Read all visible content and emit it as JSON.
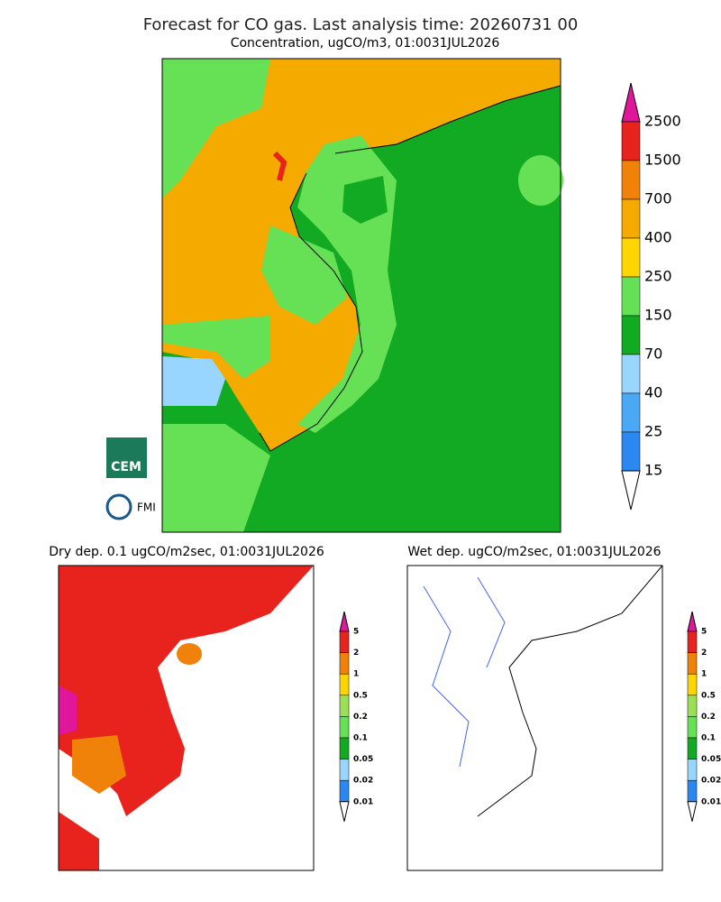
{
  "header": {
    "title": "Forecast for CO gas. Last analysis time: 20260731 00"
  },
  "panels": [
    {
      "subtitle": "Concentration, ugCO/m3, 01:0031JUL2026",
      "levels": [
        2500,
        1500,
        700,
        400,
        250,
        150,
        70,
        40,
        25,
        15
      ],
      "colors": [
        "#e0179a",
        "#e8231e",
        "#f0820a",
        "#f5aa00",
        "#ffd500",
        "#66e055",
        "#11aa22",
        "#99d6ff",
        "#4aa8f5",
        "#2a88f0",
        "#ffffff"
      ]
    },
    {
      "subtitle": "Dry dep. 0.1 ugCO/m2sec, 01:0031JUL2026",
      "levels": [
        5,
        2,
        1,
        0.5,
        0.2,
        0.1,
        0.05,
        0.02,
        0.01
      ],
      "colors": [
        "#e0179a",
        "#e8231e",
        "#f0820a",
        "#ffd500",
        "#99e055",
        "#66e055",
        "#11aa22",
        "#99d6ff",
        "#2a88f0",
        "#ffffff"
      ]
    },
    {
      "subtitle": "Wet dep. ugCO/m2sec, 01:0031JUL2026",
      "levels": [
        5,
        2,
        1,
        0.5,
        0.2,
        0.1,
        0.05,
        0.02,
        0.01
      ],
      "colors": [
        "#e0179a",
        "#e8231e",
        "#f0820a",
        "#ffd500",
        "#99e055",
        "#66e055",
        "#11aa22",
        "#99d6ff",
        "#2a88f0",
        "#ffffff"
      ]
    }
  ],
  "logos": [
    "CEM",
    "FMI"
  ]
}
